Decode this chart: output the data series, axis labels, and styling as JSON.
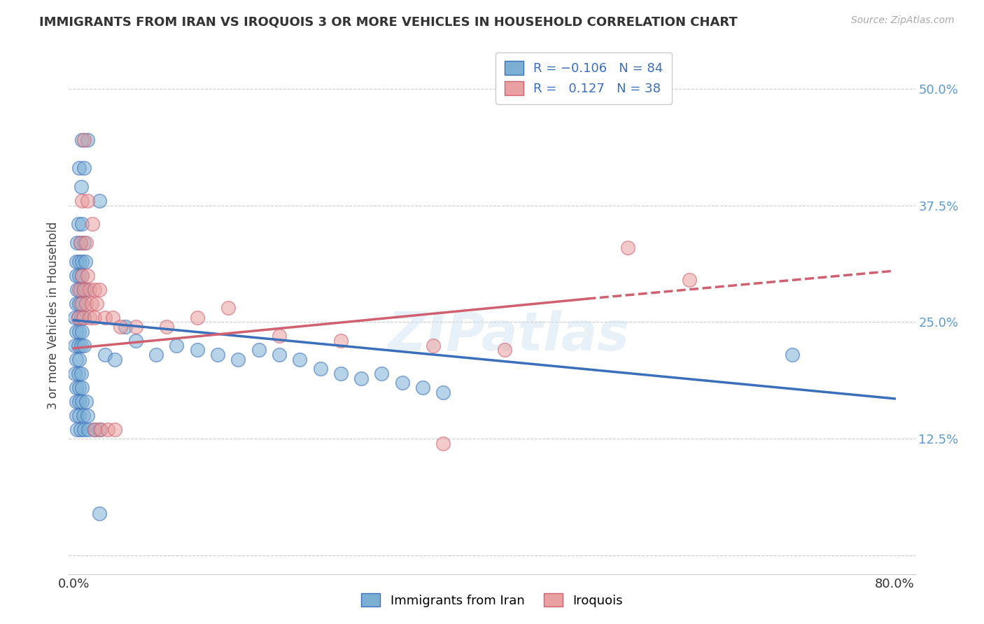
{
  "title": "IMMIGRANTS FROM IRAN VS IROQUOIS 3 OR MORE VEHICLES IN HOUSEHOLD CORRELATION CHART",
  "source": "Source: ZipAtlas.com",
  "ylabel": "3 or more Vehicles in Household",
  "yticks": [
    0.0,
    0.125,
    0.25,
    0.375,
    0.5
  ],
  "ytick_labels": [
    "",
    "12.5%",
    "25.0%",
    "37.5%",
    "50.0%"
  ],
  "xlim": [
    -0.005,
    0.82
  ],
  "ylim": [
    -0.02,
    0.535
  ],
  "legend_label1": "Immigrants from Iran",
  "legend_label2": "Iroquois",
  "blue_color": "#7bafd4",
  "pink_color": "#e8a0a0",
  "blue_line_color": "#3a6fbb",
  "pink_line_color": "#d06070",
  "blue_scatter": [
    [
      0.008,
      0.445
    ],
    [
      0.013,
      0.445
    ],
    [
      0.005,
      0.415
    ],
    [
      0.01,
      0.415
    ],
    [
      0.007,
      0.395
    ],
    [
      0.025,
      0.38
    ],
    [
      0.004,
      0.355
    ],
    [
      0.008,
      0.355
    ],
    [
      0.003,
      0.335
    ],
    [
      0.006,
      0.335
    ],
    [
      0.01,
      0.335
    ],
    [
      0.002,
      0.315
    ],
    [
      0.005,
      0.315
    ],
    [
      0.008,
      0.315
    ],
    [
      0.011,
      0.315
    ],
    [
      0.002,
      0.3
    ],
    [
      0.005,
      0.3
    ],
    [
      0.008,
      0.3
    ],
    [
      0.003,
      0.285
    ],
    [
      0.006,
      0.285
    ],
    [
      0.009,
      0.285
    ],
    [
      0.012,
      0.285
    ],
    [
      0.002,
      0.27
    ],
    [
      0.005,
      0.27
    ],
    [
      0.008,
      0.27
    ],
    [
      0.001,
      0.255
    ],
    [
      0.004,
      0.255
    ],
    [
      0.007,
      0.255
    ],
    [
      0.01,
      0.255
    ],
    [
      0.002,
      0.24
    ],
    [
      0.005,
      0.24
    ],
    [
      0.008,
      0.24
    ],
    [
      0.001,
      0.225
    ],
    [
      0.004,
      0.225
    ],
    [
      0.007,
      0.225
    ],
    [
      0.01,
      0.225
    ],
    [
      0.002,
      0.21
    ],
    [
      0.005,
      0.21
    ],
    [
      0.001,
      0.195
    ],
    [
      0.004,
      0.195
    ],
    [
      0.007,
      0.195
    ],
    [
      0.002,
      0.18
    ],
    [
      0.005,
      0.18
    ],
    [
      0.008,
      0.18
    ],
    [
      0.002,
      0.165
    ],
    [
      0.005,
      0.165
    ],
    [
      0.008,
      0.165
    ],
    [
      0.012,
      0.165
    ],
    [
      0.002,
      0.15
    ],
    [
      0.005,
      0.15
    ],
    [
      0.009,
      0.15
    ],
    [
      0.013,
      0.15
    ],
    [
      0.003,
      0.135
    ],
    [
      0.006,
      0.135
    ],
    [
      0.01,
      0.135
    ],
    [
      0.014,
      0.135
    ],
    [
      0.02,
      0.135
    ],
    [
      0.025,
      0.135
    ],
    [
      0.03,
      0.215
    ],
    [
      0.04,
      0.21
    ],
    [
      0.05,
      0.245
    ],
    [
      0.06,
      0.23
    ],
    [
      0.08,
      0.215
    ],
    [
      0.1,
      0.225
    ],
    [
      0.12,
      0.22
    ],
    [
      0.14,
      0.215
    ],
    [
      0.16,
      0.21
    ],
    [
      0.18,
      0.22
    ],
    [
      0.2,
      0.215
    ],
    [
      0.22,
      0.21
    ],
    [
      0.24,
      0.2
    ],
    [
      0.26,
      0.195
    ],
    [
      0.28,
      0.19
    ],
    [
      0.3,
      0.195
    ],
    [
      0.32,
      0.185
    ],
    [
      0.34,
      0.18
    ],
    [
      0.36,
      0.175
    ],
    [
      0.7,
      0.215
    ],
    [
      0.025,
      0.045
    ]
  ],
  "pink_scatter": [
    [
      0.01,
      0.445
    ],
    [
      0.008,
      0.38
    ],
    [
      0.013,
      0.38
    ],
    [
      0.018,
      0.355
    ],
    [
      0.006,
      0.335
    ],
    [
      0.012,
      0.335
    ],
    [
      0.008,
      0.3
    ],
    [
      0.013,
      0.3
    ],
    [
      0.005,
      0.285
    ],
    [
      0.01,
      0.285
    ],
    [
      0.015,
      0.285
    ],
    [
      0.02,
      0.285
    ],
    [
      0.025,
      0.285
    ],
    [
      0.007,
      0.27
    ],
    [
      0.012,
      0.27
    ],
    [
      0.017,
      0.27
    ],
    [
      0.022,
      0.27
    ],
    [
      0.004,
      0.255
    ],
    [
      0.009,
      0.255
    ],
    [
      0.015,
      0.255
    ],
    [
      0.02,
      0.255
    ],
    [
      0.03,
      0.255
    ],
    [
      0.038,
      0.255
    ],
    [
      0.045,
      0.245
    ],
    [
      0.06,
      0.245
    ],
    [
      0.09,
      0.245
    ],
    [
      0.12,
      0.255
    ],
    [
      0.15,
      0.265
    ],
    [
      0.2,
      0.235
    ],
    [
      0.26,
      0.23
    ],
    [
      0.35,
      0.225
    ],
    [
      0.42,
      0.22
    ],
    [
      0.54,
      0.33
    ],
    [
      0.6,
      0.295
    ],
    [
      0.02,
      0.135
    ],
    [
      0.026,
      0.135
    ],
    [
      0.033,
      0.135
    ],
    [
      0.04,
      0.135
    ],
    [
      0.36,
      0.12
    ]
  ],
  "blue_line": {
    "x0": 0.0,
    "x1": 0.8,
    "y0": 0.252,
    "y1": 0.168
  },
  "pink_line_solid": {
    "x0": 0.0,
    "x1": 0.5,
    "y0": 0.222,
    "y1": 0.275
  },
  "pink_line_dash": {
    "x0": 0.5,
    "x1": 0.8,
    "y0": 0.275,
    "y1": 0.305
  },
  "watermark": "ZIPatlas",
  "background_color": "#ffffff"
}
